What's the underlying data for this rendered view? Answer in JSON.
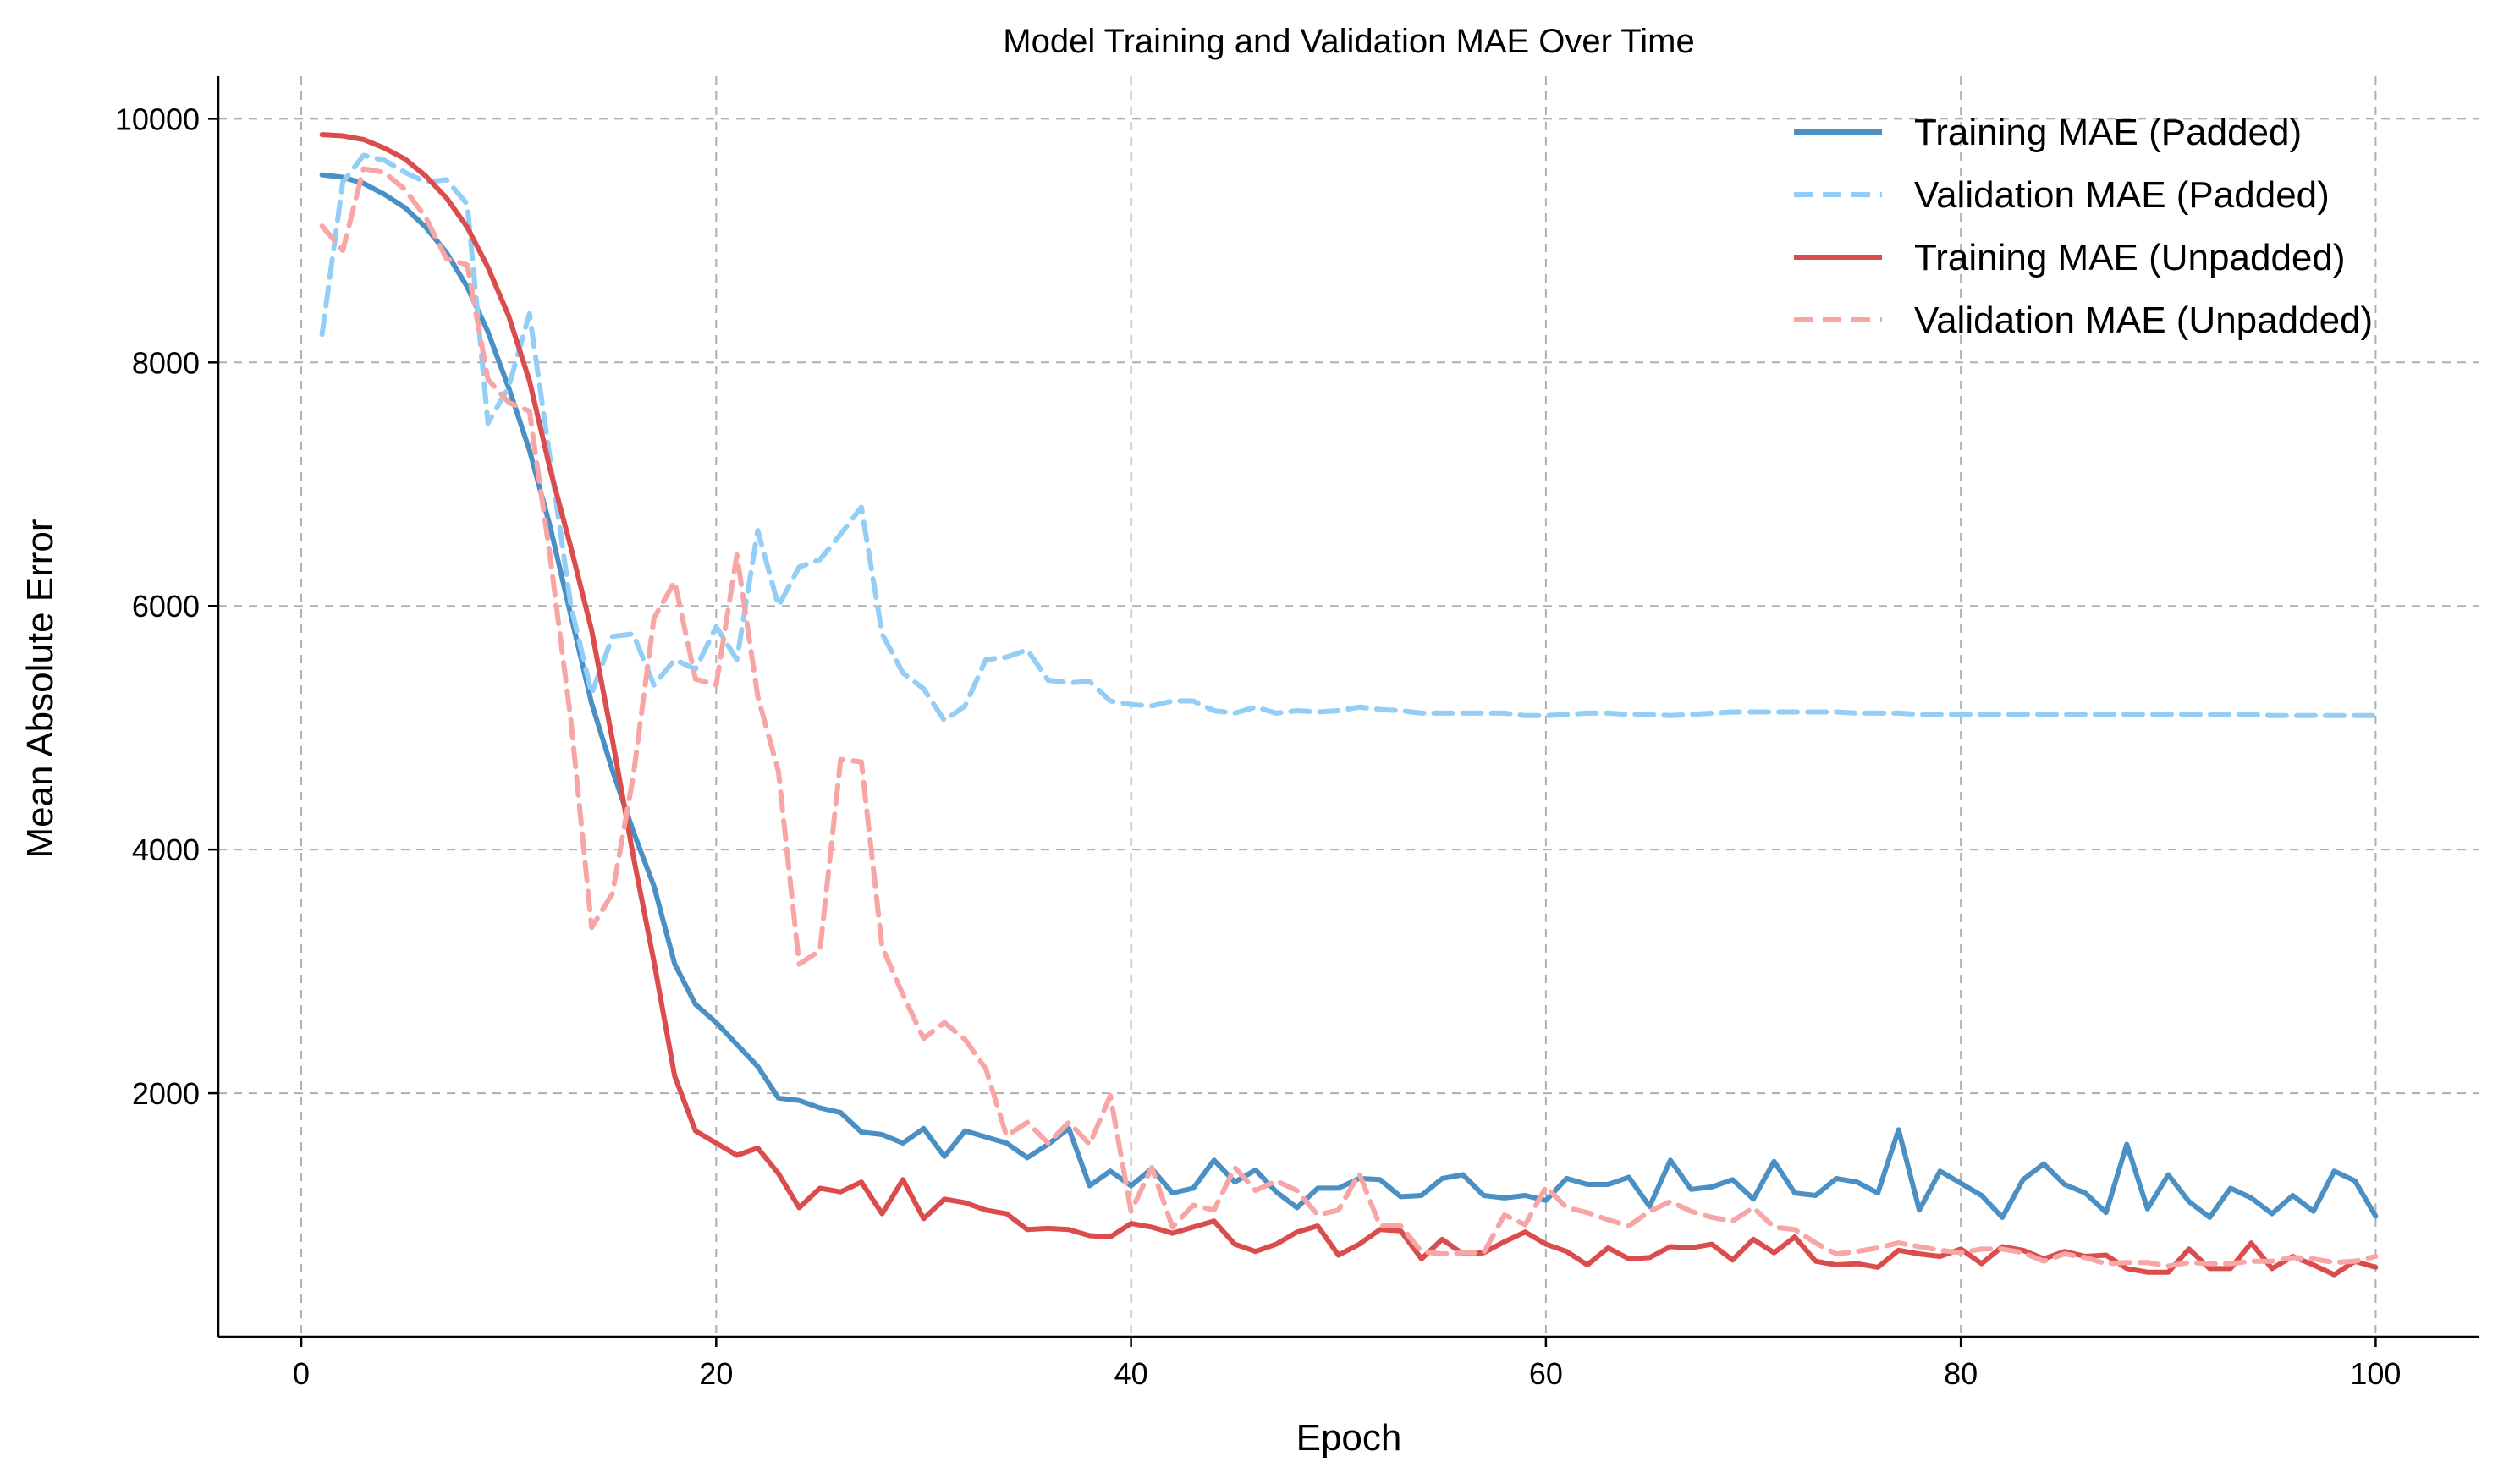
{
  "chart_data": {
    "type": "line",
    "title": "Model Training and Validation MAE Over Time",
    "xlabel": "Epoch",
    "ylabel": "Mean Absolute Error",
    "xlim": [
      -4,
      105
    ],
    "ylim": [
      0,
      10350
    ],
    "xticks": [
      0,
      20,
      40,
      60,
      80,
      100
    ],
    "yticks": [
      2000,
      4000,
      6000,
      8000,
      10000
    ],
    "xtick_labels": [
      "0",
      "20",
      "40",
      "60",
      "80",
      "100"
    ],
    "ytick_labels": [
      "2000",
      "4000",
      "6000",
      "8000",
      "10000"
    ],
    "grid": true,
    "legend_position": "top-right",
    "x": [
      1,
      2,
      3,
      4,
      5,
      6,
      7,
      8,
      9,
      10,
      11,
      12,
      13,
      14,
      15,
      16,
      17,
      18,
      19,
      20,
      21,
      22,
      23,
      24,
      25,
      26,
      27,
      28,
      29,
      30,
      31,
      32,
      33,
      34,
      35,
      36,
      37,
      38,
      39,
      40,
      41,
      42,
      43,
      44,
      45,
      46,
      47,
      48,
      49,
      50,
      51,
      52,
      53,
      54,
      55,
      56,
      57,
      58,
      59,
      60,
      61,
      62,
      63,
      64,
      65,
      66,
      67,
      68,
      69,
      70,
      71,
      72,
      73,
      74,
      75,
      76,
      77,
      78,
      79,
      80,
      81,
      82,
      83,
      84,
      85,
      86,
      87,
      88,
      89,
      90,
      91,
      92,
      93,
      94,
      95,
      96,
      97,
      98,
      99,
      100
    ],
    "series": [
      {
        "name": "Training MAE (Padded)",
        "color": "#4a90c4",
        "dash": "solid",
        "values": [
          9540,
          9520,
          9470,
          9380,
          9270,
          9110,
          8900,
          8620,
          8250,
          7790,
          7280,
          6650,
          5920,
          5200,
          4650,
          4150,
          3700,
          3060,
          2730,
          2580,
          2400,
          2220,
          1960,
          1940,
          1880,
          1840,
          1680,
          1660,
          1590,
          1710,
          1480,
          1690,
          1640,
          1590,
          1470,
          1580,
          1710,
          1240,
          1360,
          1240,
          1380,
          1180,
          1220,
          1450,
          1270,
          1370,
          1190,
          1060,
          1220,
          1220,
          1300,
          1290,
          1150,
          1160,
          1300,
          1330,
          1160,
          1140,
          1160,
          1120,
          1300,
          1250,
          1250,
          1310,
          1070,
          1450,
          1210,
          1230,
          1290,
          1130,
          1440,
          1180,
          1160,
          1300,
          1270,
          1180,
          1700,
          1040,
          1360,
          1260,
          1160,
          980,
          1290,
          1420,
          1250,
          1180,
          1020,
          1580,
          1050,
          1330,
          1110,
          980,
          1220,
          1140,
          1010,
          1160,
          1030,
          1360,
          1280,
          990
        ]
      },
      {
        "name": "Validation MAE (Padded)",
        "color": "#92cef5",
        "dash": "dashed",
        "values": [
          8230,
          9480,
          9700,
          9660,
          9560,
          9480,
          9500,
          9300,
          7500,
          7800,
          8400,
          7200,
          6000,
          5280,
          5750,
          5770,
          5350,
          5560,
          5480,
          5830,
          5560,
          6620,
          6000,
          6320,
          6380,
          6590,
          6810,
          5770,
          5450,
          5320,
          5060,
          5180,
          5560,
          5580,
          5640,
          5390,
          5370,
          5380,
          5220,
          5190,
          5180,
          5220,
          5220,
          5140,
          5120,
          5170,
          5120,
          5140,
          5130,
          5140,
          5170,
          5150,
          5140,
          5120,
          5120,
          5120,
          5120,
          5120,
          5100,
          5100,
          5110,
          5120,
          5120,
          5110,
          5110,
          5100,
          5110,
          5120,
          5130,
          5130,
          5130,
          5130,
          5130,
          5130,
          5120,
          5120,
          5120,
          5110,
          5110,
          5110,
          5110,
          5110,
          5110,
          5110,
          5110,
          5110,
          5110,
          5110,
          5110,
          5110,
          5110,
          5110,
          5110,
          5110,
          5100,
          5100,
          5100,
          5100,
          5100,
          5100
        ]
      },
      {
        "name": "Training MAE (Unpadded)",
        "color": "#db4d4d",
        "dash": "solid",
        "values": [
          9870,
          9860,
          9830,
          9760,
          9670,
          9530,
          9350,
          9110,
          8780,
          8380,
          7850,
          7120,
          6480,
          5800,
          4900,
          3950,
          3080,
          2140,
          1690,
          1590,
          1490,
          1550,
          1340,
          1060,
          1220,
          1190,
          1270,
          1010,
          1290,
          970,
          1130,
          1100,
          1040,
          1010,
          880,
          890,
          880,
          830,
          820,
          930,
          900,
          850,
          900,
          950,
          760,
          700,
          760,
          860,
          910,
          670,
          760,
          880,
          870,
          640,
          800,
          680,
          690,
          780,
          860,
          760,
          700,
          590,
          730,
          640,
          650,
          740,
          730,
          760,
          630,
          800,
          690,
          820,
          620,
          590,
          600,
          570,
          710,
          680,
          660,
          720,
          600,
          740,
          710,
          640,
          700,
          660,
          670,
          560,
          530,
          530,
          720,
          560,
          560,
          770,
          560,
          660,
          590,
          510,
          620,
          570
        ]
      },
      {
        "name": "Validation MAE (Unpadded)",
        "color": "#f8a5a5",
        "dash": "dashed",
        "values": [
          9120,
          8920,
          9590,
          9560,
          9420,
          9190,
          8850,
          8800,
          7860,
          7670,
          7600,
          6400,
          5060,
          3360,
          3640,
          4600,
          5900,
          6200,
          5400,
          5350,
          6420,
          5260,
          4640,
          3060,
          3170,
          4740,
          4720,
          3200,
          2810,
          2450,
          2580,
          2440,
          2200,
          1650,
          1760,
          1590,
          1760,
          1580,
          1980,
          1030,
          1390,
          900,
          1080,
          1040,
          1390,
          1200,
          1280,
          1200,
          1000,
          1040,
          1340,
          910,
          910,
          700,
          680,
          690,
          690,
          1000,
          920,
          1230,
          1060,
          1020,
          960,
          910,
          1030,
          1110,
          1030,
          980,
          950,
          1060,
          900,
          880,
          770,
          680,
          700,
          730,
          770,
          740,
          710,
          690,
          720,
          720,
          690,
          620,
          680,
          650,
          600,
          610,
          610,
          580,
          610,
          600,
          600,
          620,
          620,
          650,
          640,
          610,
          620,
          660
        ]
      }
    ]
  }
}
